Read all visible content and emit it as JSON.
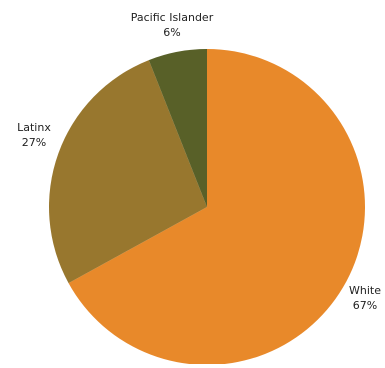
{
  "chart_data": {
    "type": "pie",
    "slices": [
      {
        "label": "White",
        "value": 67,
        "value_label": "67%",
        "color": "#E8892A"
      },
      {
        "label": "Latinx",
        "value": 27,
        "value_label": "27%",
        "color": "#98772E"
      },
      {
        "label": "Pacific Islander",
        "value": 6,
        "value_label": "6%",
        "color": "#586028"
      }
    ],
    "start": "12 o'clock",
    "direction": "clockwise",
    "legend": "none"
  }
}
